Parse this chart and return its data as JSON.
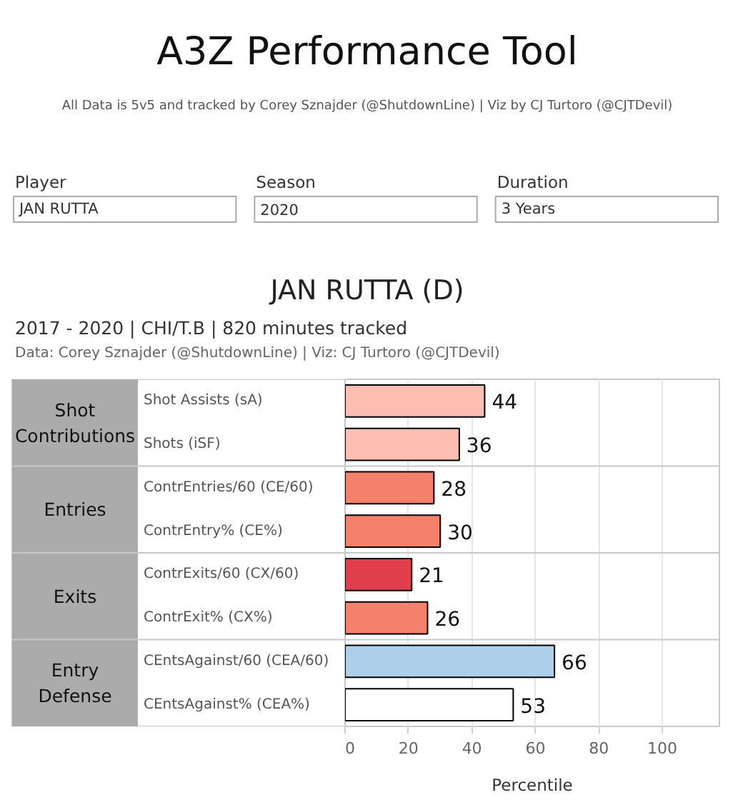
{
  "chart_data": [
    {
      "type": "other",
      "title": "A3Z Performance Tool",
      "annotations": [
        "All Data is 5v5 and tracked by Corey Sznajder (@ShutdownLine) | Viz by CJ Turtoro (@CJTDevil)",
        "Player",
        "JAN RUTTA",
        "Season",
        "2020",
        "Duration",
        "3 Years"
      ]
    },
    {
      "type": "bar",
      "orientation": "horizontal",
      "title": "JAN RUTTA (D)",
      "subtitle": "2017 - 2020 | CHI/T.B | 820 minutes tracked",
      "annotations": [
        "Data: Corey Sznajder (@ShutdownLine) | Viz: CJ Turtoro (@CJTDevil)",
        "Shot Contributions",
        "Entries",
        "Exits",
        "Entry Defense"
      ],
      "categories": [
        "Shot Assists (sA)",
        "Shots (iSF)",
        "ContrEntries/60 (CE/60)",
        "ContrEntry% (CE%)",
        "ContrExits/60 (CX/60)",
        "ContrExit% (CX%)",
        "CEntsAgainst/60 (CEA/60)",
        "CEntsAgainst% (CEA%)"
      ],
      "values": [
        44,
        36,
        28,
        30,
        21,
        26,
        66,
        53
      ],
      "colors": [
        "#fdbdb0",
        "#fdbdb0",
        "#f5806b",
        "#f5806b",
        "#de3f4a",
        "#f5806b",
        "#aecfea",
        "#ffffff"
      ],
      "xlim": [
        0,
        118
      ],
      "xticks": [
        0,
        20,
        40,
        60,
        80,
        100
      ],
      "xlabel": "Percentile",
      "grid": "x",
      "data_labels": true
    }
  ]
}
